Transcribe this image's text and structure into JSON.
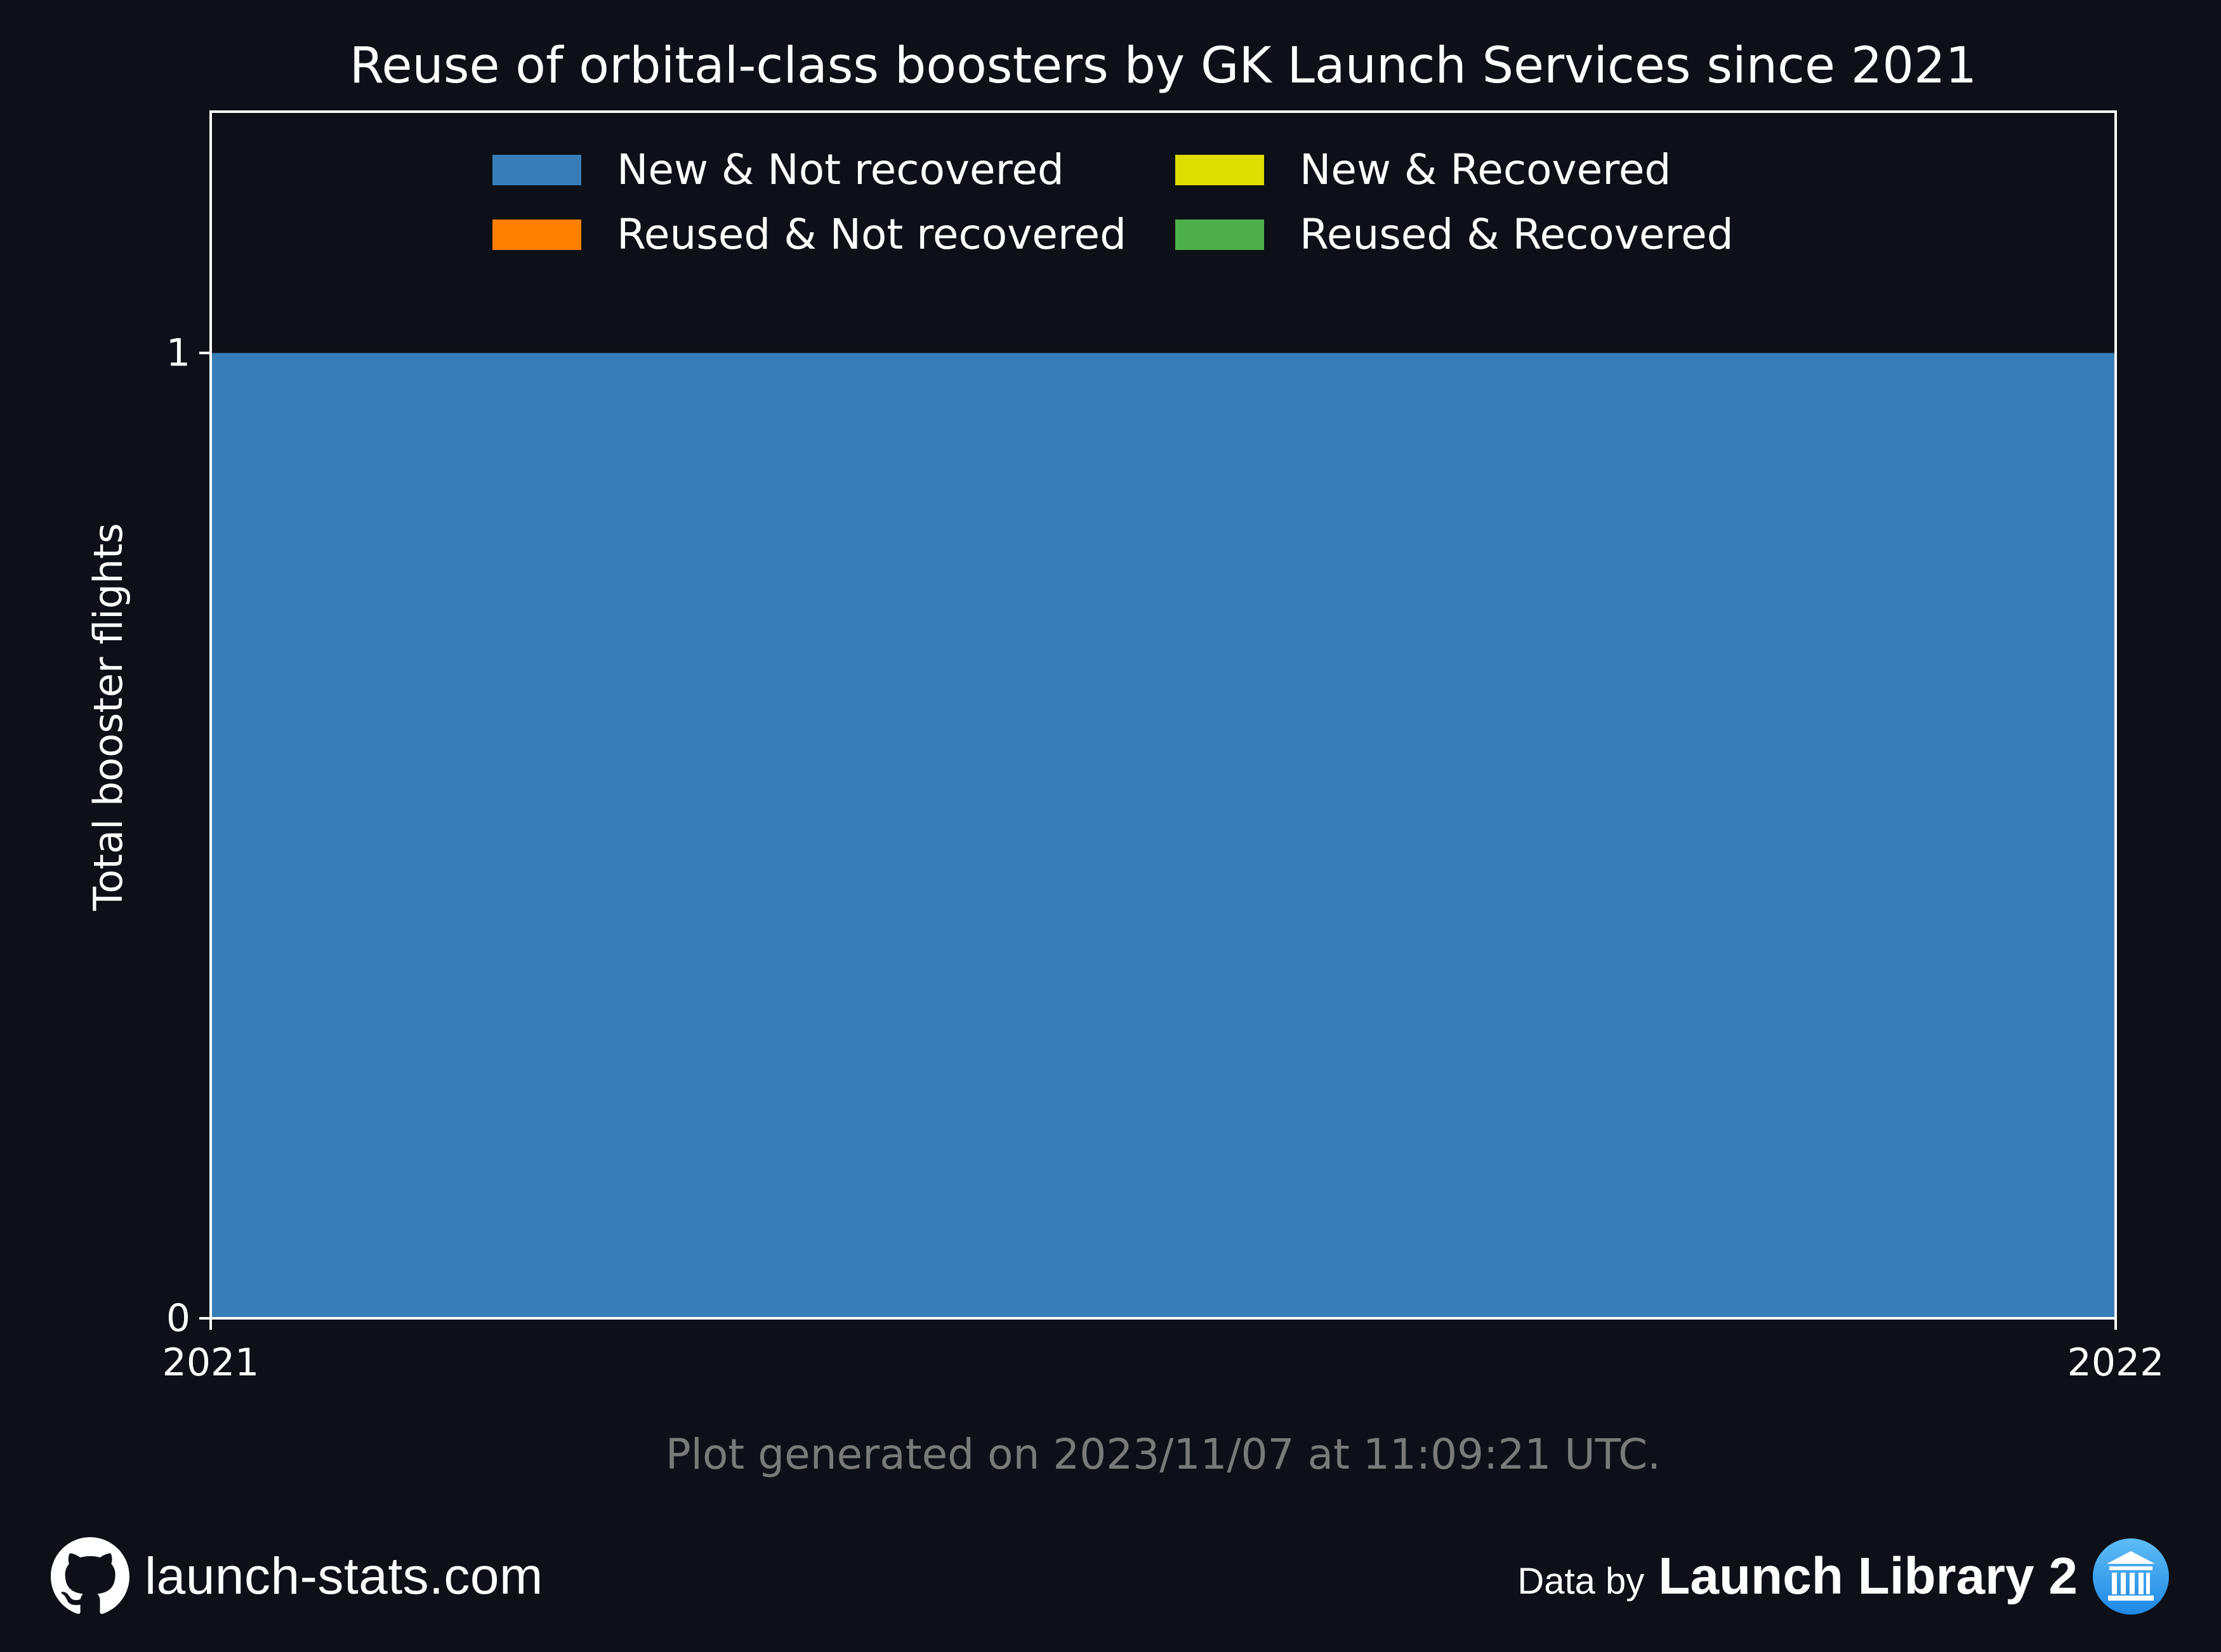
{
  "chart_data": {
    "type": "area",
    "title": "Reuse of orbital-class boosters by GK Launch Services since 2021",
    "xlabel": "",
    "ylabel": "Total booster flights",
    "x": [
      2021,
      2022
    ],
    "x_ticks": [
      "2021",
      "2022"
    ],
    "y_ticks": [
      "0",
      "1"
    ],
    "xlim": [
      2021,
      2022
    ],
    "ylim": [
      0,
      1.25
    ],
    "stacked": true,
    "grid": false,
    "legend_position": "top-center",
    "series": [
      {
        "name": "New & Not recovered",
        "color": "#377eb8",
        "values": [
          1,
          1
        ]
      },
      {
        "name": "New & Recovered",
        "color": "#dede00",
        "values": [
          0,
          0
        ]
      },
      {
        "name": "Reused & Not recovered",
        "color": "#ff7f00",
        "values": [
          0,
          0
        ]
      },
      {
        "name": "Reused & Recovered",
        "color": "#4daf4a",
        "values": [
          0,
          0
        ]
      }
    ],
    "legend_order": [
      0,
      2,
      1,
      3
    ]
  },
  "footer": {
    "generated_text": "Plot generated on 2023/11/07 at 11:09:21 UTC.",
    "site_text": "launch-stats.com",
    "site_icon": "github-icon",
    "data_by_label": "Data by",
    "source_name": "Launch Library 2",
    "source_icon": "launch-library-logo-icon"
  },
  "colors": {
    "background": "#0d1017",
    "axes_frame": "#ffffff",
    "text": "#ffffff",
    "muted_text": "#7a7a7a"
  }
}
